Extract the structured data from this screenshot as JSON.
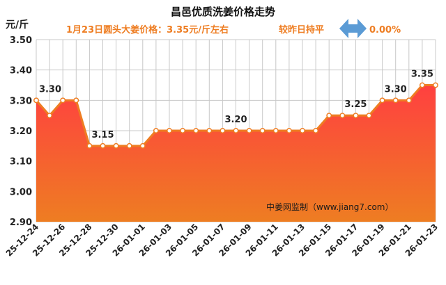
{
  "chart_data": {
    "type": "area",
    "title": "昌邑优质洗姜价格走势",
    "subtitle": "1月23日圆头大姜价格：3.35元/斤左右",
    "change_text": "较昨日持平",
    "change_value": "0.00%",
    "ylabel": "元/斤",
    "ylim": [
      2.9,
      3.5
    ],
    "yticks": [
      "2.90",
      "3.00",
      "3.10",
      "3.20",
      "3.30",
      "3.40",
      "3.50"
    ],
    "grid": true,
    "watermark": "中姜网监制（www.jiang7.com）",
    "x": [
      "25-12-24",
      "25-12-25",
      "25-12-26",
      "25-12-27",
      "25-12-28",
      "25-12-29",
      "25-12-30",
      "25-12-31",
      "26-01-01",
      "26-01-02",
      "26-01-03",
      "26-01-04",
      "26-01-05",
      "26-01-06",
      "26-01-07",
      "26-01-08",
      "26-01-09",
      "26-01-10",
      "26-01-11",
      "26-01-12",
      "26-01-13",
      "26-01-14",
      "26-01-15",
      "26-01-16",
      "26-01-17",
      "26-01-18",
      "26-01-19",
      "26-01-20",
      "26-01-21",
      "26-01-22",
      "26-01-23"
    ],
    "xtick_labels": [
      "25-12-24",
      "25-12-26",
      "25-12-28",
      "25-12-30",
      "26-01-01",
      "26-01-03",
      "26-01-05",
      "26-01-07",
      "26-01-09",
      "26-01-11",
      "26-01-13",
      "26-01-15",
      "26-01-17",
      "26-01-19",
      "26-01-21",
      "26-01-23"
    ],
    "values": [
      3.3,
      3.25,
      3.3,
      3.3,
      3.15,
      3.15,
      3.15,
      3.15,
      3.15,
      3.2,
      3.2,
      3.2,
      3.2,
      3.2,
      3.2,
      3.2,
      3.2,
      3.2,
      3.2,
      3.2,
      3.2,
      3.2,
      3.25,
      3.25,
      3.25,
      3.25,
      3.3,
      3.3,
      3.3,
      3.35,
      3.35
    ],
    "data_labels": [
      {
        "index": 0,
        "text": "3.30"
      },
      {
        "index": 5,
        "text": "3.15"
      },
      {
        "index": 15,
        "text": "3.20"
      },
      {
        "index": 24,
        "text": "3.25"
      },
      {
        "index": 27,
        "text": "3.30"
      },
      {
        "index": 29,
        "text": "3.35"
      }
    ],
    "colors": {
      "line": "#ee7d22",
      "fill_top": "#ff4040",
      "fill_bottom": "#ee7d22",
      "arrow": "#5b9bd5"
    }
  }
}
